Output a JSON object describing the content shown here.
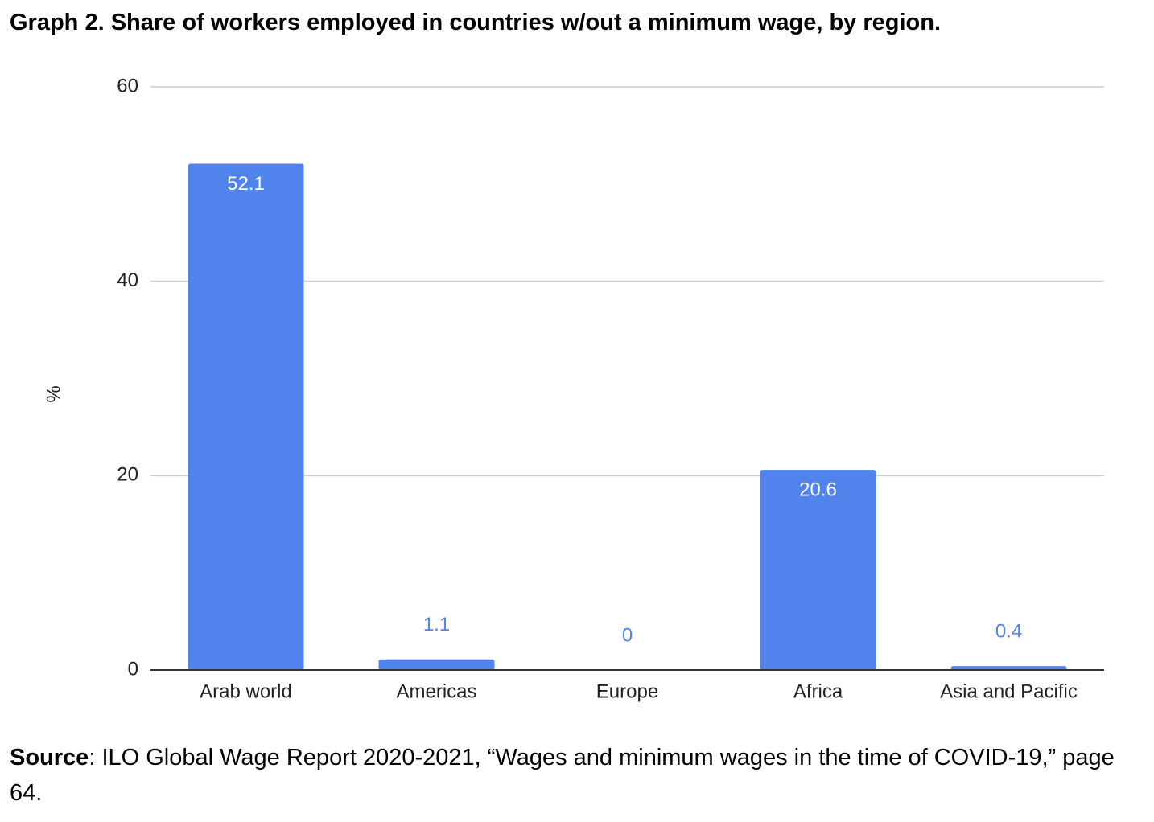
{
  "chart_data": {
    "type": "bar",
    "title": "Graph 2. Share of workers employed in countries w/out a minimum wage, by region.",
    "y_label": "%",
    "categories": [
      "Arab world",
      "Americas",
      "Europe",
      "Africa",
      "Asia and Pacific"
    ],
    "values": [
      52.1,
      1.1,
      0,
      20.6,
      0.4
    ],
    "color": "#5183ec",
    "ylim": [
      0,
      60
    ],
    "yticks": [
      0,
      20,
      40,
      60
    ],
    "grid": true
  },
  "source": {
    "label": "Source",
    "text": ": ILO Global Wage Report 2020-2021, “Wages and minimum wages in the time of COVID-19,” page 64."
  }
}
